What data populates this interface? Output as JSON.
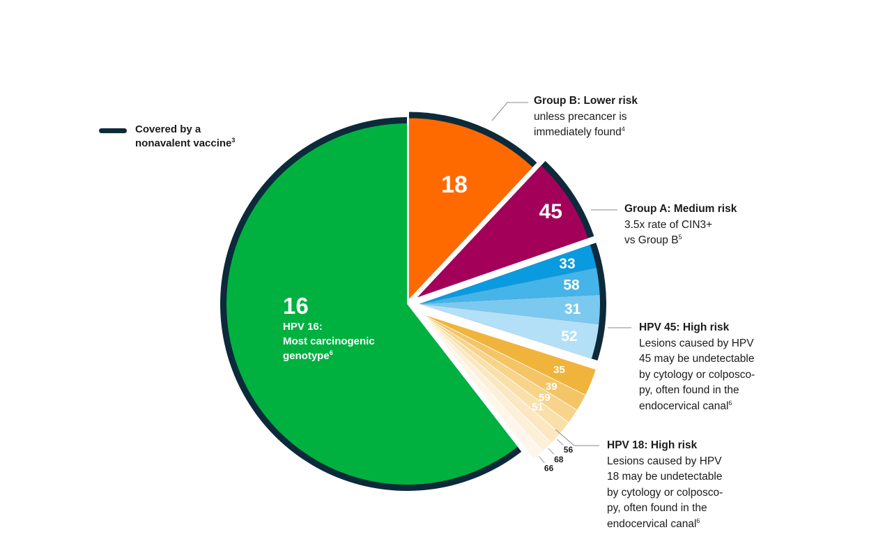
{
  "legend": {
    "label_line1": "Covered by a",
    "label_line2": "nonavalent vaccine",
    "label_sup": "3",
    "color": "#0c2a3a"
  },
  "chart_data": {
    "type": "pie",
    "slices": [
      {
        "label": "16",
        "value": 60.5,
        "color": "#00b140",
        "group": "HPV 16",
        "covered_by_vaccine": true
      },
      {
        "label": "18",
        "value": 12.0,
        "color": "#ff6a00",
        "group": "HPV 18",
        "covered_by_vaccine": true
      },
      {
        "label": "45",
        "value": 7.7,
        "color": "#a3005a",
        "group": "HPV 45",
        "covered_by_vaccine": true
      },
      {
        "label": "33",
        "value": 2.1,
        "color": "#0a9ae0",
        "group": "Group A",
        "covered_by_vaccine": true
      },
      {
        "label": "58",
        "value": 2.4,
        "color": "#45b4e8",
        "group": "Group A",
        "covered_by_vaccine": true
      },
      {
        "label": "31",
        "value": 2.6,
        "color": "#7cc9f0",
        "group": "Group A",
        "covered_by_vaccine": true
      },
      {
        "label": "52",
        "value": 3.1,
        "color": "#b3e0f6",
        "group": "Group A",
        "covered_by_vaccine": true
      },
      {
        "label": "35",
        "value": 2.4,
        "color": "#f0b43c",
        "group": "Group B",
        "covered_by_vaccine": false
      },
      {
        "label": "39",
        "value": 1.5,
        "color": "#f4c567",
        "group": "Group B",
        "covered_by_vaccine": false
      },
      {
        "label": "59",
        "value": 1.3,
        "color": "#f7d48a",
        "group": "Group B",
        "covered_by_vaccine": false
      },
      {
        "label": "51",
        "value": 1.2,
        "color": "#f9e0aa",
        "group": "Group B",
        "covered_by_vaccine": false
      },
      {
        "label": "56",
        "value": 1.1,
        "color": "#fbe8c2",
        "group": "Group B",
        "covered_by_vaccine": false
      },
      {
        "label": "68",
        "value": 1.05,
        "color": "#fcf0d8",
        "group": "Group B",
        "covered_by_vaccine": false
      },
      {
        "label": "66",
        "value": 1.05,
        "color": "#fef6ea",
        "group": "Group B",
        "covered_by_vaccine": false
      }
    ]
  },
  "hpv16_label": {
    "number": "16",
    "line1": "HPV 16:",
    "line2": "Most carcinogenic",
    "line3": "genotype",
    "sup": "6"
  },
  "callouts": {
    "group_b": {
      "title": "Group B: Lower risk",
      "line1": "unless precancer is",
      "line2": "immediately found",
      "sup": "4"
    },
    "group_a": {
      "title": "Group A: Medium risk",
      "line1": "3.5x rate of CIN3+",
      "line2": "vs Group B",
      "sup": "5"
    },
    "hpv45": {
      "title": "HPV 45: High risk",
      "line1": "Lesions caused by HPV",
      "line2": "45 may be undetectable",
      "line3": "by cytology or colposco-",
      "line4": "py, often found in the",
      "line5": "endocervical canal",
      "sup": "6"
    },
    "hpv18": {
      "title": "HPV 18: High risk",
      "line1": "Lesions caused by HPV",
      "line2": "18 may be undetectable",
      "line3": "by cytology or colposco-",
      "line4": "py, often found in the",
      "line5": "endocervical canal",
      "sup": "6"
    }
  }
}
